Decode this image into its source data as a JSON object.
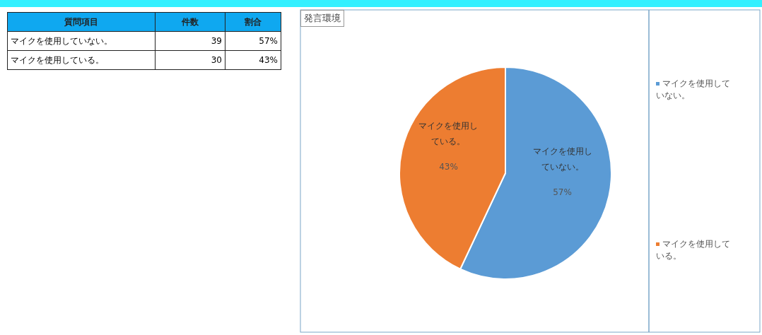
{
  "chart_data": [
    {
      "type": "other",
      "annotations": [
        "質問項目"
      ],
      "categories": [
        "マイクを使用していない。",
        "マイクを使用している。"
      ],
      "data_labels": true,
      "series": [
        {
          "name": "件数",
          "values": [
            39,
            30
          ]
        },
        {
          "name": "割合",
          "values": [
            57,
            43
          ],
          "value_labels": [
            "57%",
            "43%"
          ]
        }
      ]
    },
    {
      "type": "pie",
      "title": "発言環境",
      "categories": [
        "マイクを使用していない。",
        "マイクを使用している。"
      ],
      "values": [
        57,
        43
      ],
      "value_labels": [
        "57%",
        "43%"
      ],
      "colors": [
        "#5b9bd5",
        "#ed7d31"
      ],
      "legend": "right"
    }
  ]
}
